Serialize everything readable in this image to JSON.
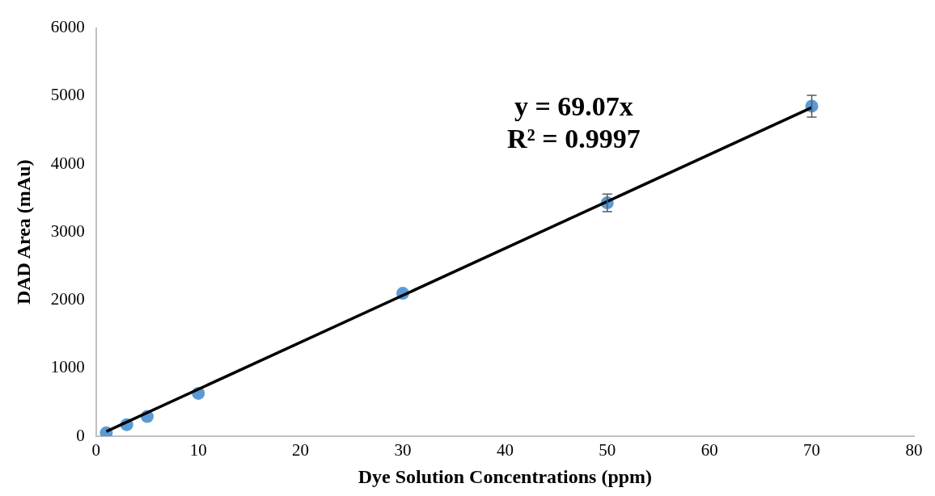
{
  "chart_data": {
    "type": "scatter",
    "xlabel": "Dye Solution Concentrations (ppm)",
    "ylabel": "DAD Area (mAu)",
    "annotations": [
      "y = 69.07x",
      "R² = 0.9997"
    ],
    "x": [
      1,
      3,
      5,
      10,
      30,
      50,
      70
    ],
    "series": [
      {
        "color": "#5b9bd5",
        "marker": "circle",
        "values": [
          50,
          170,
          290,
          630,
          2100,
          3430,
          4850
        ],
        "errors": [
          null,
          null,
          null,
          null,
          null,
          130,
          160
        ]
      },
      {
        "type": "line",
        "color": "#000000",
        "marker": "none",
        "line_style": "solid",
        "x": [
          1,
          70
        ],
        "values": [
          70,
          4830
        ]
      }
    ],
    "xlim": [
      0,
      80
    ],
    "xticks": [
      0,
      10,
      20,
      30,
      40,
      50,
      60,
      70,
      80
    ],
    "ylim": [
      0,
      6000
    ],
    "yticks": [
      0,
      1000,
      2000,
      3000,
      4000,
      5000,
      6000
    ],
    "grid": false,
    "legend": false
  }
}
